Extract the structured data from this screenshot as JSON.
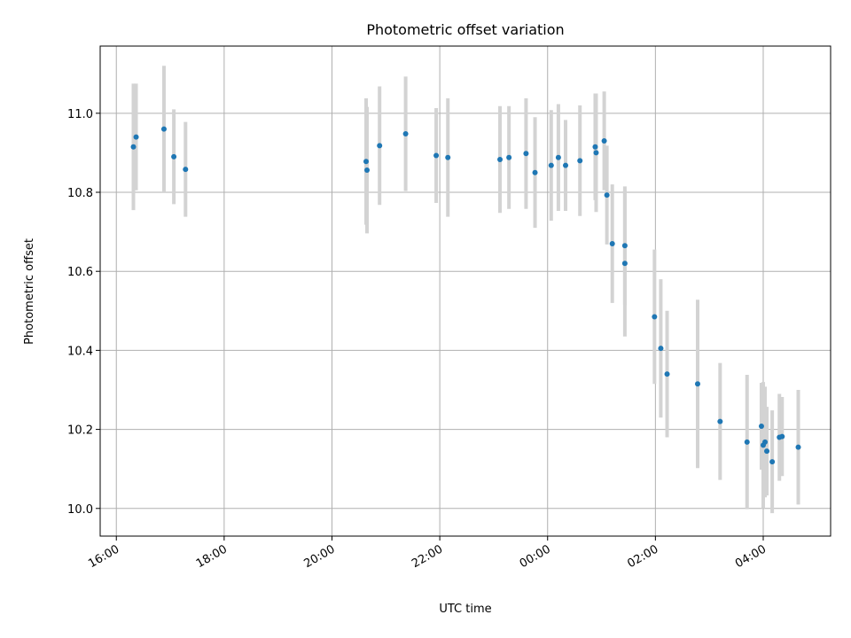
{
  "chart_data": {
    "type": "scatter",
    "title": "Photometric offset variation",
    "xlabel": "UTC time",
    "ylabel": "Photometric offset",
    "x_tick_labels": [
      "16:00",
      "18:00",
      "20:00",
      "22:00",
      "00:00",
      "02:00",
      "04:00"
    ],
    "y_tick_labels": [
      "10.0",
      "10.2",
      "10.4",
      "10.6",
      "10.8",
      "11.0"
    ],
    "xlim": [
      "15:42",
      "05:15"
    ],
    "ylim": [
      9.93,
      11.17
    ],
    "grid": true,
    "marker_color": "#1f77b4",
    "errorbar_color": "#d3d3d3",
    "points": [
      {
        "x": "16:19",
        "y": 10.915,
        "err": 0.16
      },
      {
        "x": "16:22",
        "y": 10.94,
        "err": 0.135
      },
      {
        "x": "16:53",
        "y": 10.96,
        "err": 0.16
      },
      {
        "x": "17:04",
        "y": 10.89,
        "err": 0.12
      },
      {
        "x": "17:17",
        "y": 10.858,
        "err": 0.12
      },
      {
        "x": "20:38",
        "y": 10.878,
        "err": 0.16
      },
      {
        "x": "20:39",
        "y": 10.856,
        "err": 0.16
      },
      {
        "x": "20:53",
        "y": 10.918,
        "err": 0.15
      },
      {
        "x": "21:22",
        "y": 10.948,
        "err": 0.145
      },
      {
        "x": "21:56",
        "y": 10.893,
        "err": 0.12
      },
      {
        "x": "22:09",
        "y": 10.888,
        "err": 0.15
      },
      {
        "x": "23:07",
        "y": 10.883,
        "err": 0.135
      },
      {
        "x": "23:17",
        "y": 10.888,
        "err": 0.13
      },
      {
        "x": "23:36",
        "y": 10.898,
        "err": 0.14
      },
      {
        "x": "23:46",
        "y": 10.85,
        "err": 0.14
      },
      {
        "x": "00:04",
        "y": 10.868,
        "err": 0.14
      },
      {
        "x": "00:12",
        "y": 10.888,
        "err": 0.135
      },
      {
        "x": "00:20",
        "y": 10.868,
        "err": 0.115
      },
      {
        "x": "00:36",
        "y": 10.88,
        "err": 0.14
      },
      {
        "x": "00:53",
        "y": 10.915,
        "err": 0.135
      },
      {
        "x": "00:54",
        "y": 10.9,
        "err": 0.15
      },
      {
        "x": "01:03",
        "y": 10.93,
        "err": 0.125
      },
      {
        "x": "01:06",
        "y": 10.793,
        "err": 0.125
      },
      {
        "x": "01:12",
        "y": 10.67,
        "err": 0.15
      },
      {
        "x": "01:26",
        "y": 10.665,
        "err": 0.15
      },
      {
        "x": "01:26",
        "y": 10.62,
        "err": 0.185
      },
      {
        "x": "01:59",
        "y": 10.485,
        "err": 0.17
      },
      {
        "x": "02:06",
        "y": 10.405,
        "err": 0.175
      },
      {
        "x": "02:13",
        "y": 10.34,
        "err": 0.16
      },
      {
        "x": "02:47",
        "y": 10.315,
        "err": 0.213
      },
      {
        "x": "03:12",
        "y": 10.22,
        "err": 0.148
      },
      {
        "x": "03:42",
        "y": 10.168,
        "err": 0.17
      },
      {
        "x": "03:58",
        "y": 10.208,
        "err": 0.11
      },
      {
        "x": "04:00",
        "y": 10.16,
        "err": 0.16
      },
      {
        "x": "04:02",
        "y": 10.168,
        "err": 0.14
      },
      {
        "x": "04:04",
        "y": 10.145,
        "err": 0.112
      },
      {
        "x": "04:10",
        "y": 10.118,
        "err": 0.13
      },
      {
        "x": "04:18",
        "y": 10.18,
        "err": 0.11
      },
      {
        "x": "04:21",
        "y": 10.182,
        "err": 0.1
      },
      {
        "x": "04:39",
        "y": 10.155,
        "err": 0.145
      }
    ]
  }
}
